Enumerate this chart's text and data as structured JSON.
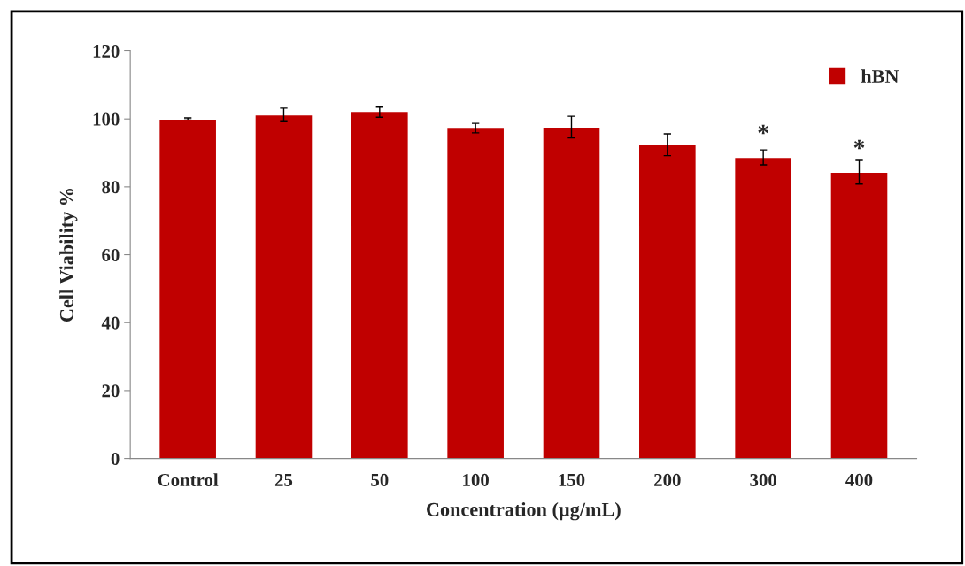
{
  "chart_data": {
    "type": "bar",
    "xlabel": "Concentration (µg/mL)",
    "ylabel": "Cell Viability %",
    "categories": [
      "Control",
      "25",
      "50",
      "100",
      "150",
      "200",
      "300",
      "400"
    ],
    "series": [
      {
        "name": "hBN",
        "color": "#c00000",
        "values": [
          100,
          101.2,
          102,
          97.3,
          97.6,
          92.4,
          88.7,
          84.3
        ],
        "errors": [
          0.3,
          2,
          1.5,
          1.4,
          3.2,
          3.2,
          2.2,
          3.5
        ]
      }
    ],
    "ylim": [
      0,
      120
    ],
    "yticks": [
      0,
      20,
      40,
      60,
      80,
      100,
      120
    ],
    "grid": false,
    "legend": "top right",
    "annotations": [
      {
        "text": "*",
        "x": "300",
        "y": 88.7
      },
      {
        "text": "*",
        "x": "400",
        "y": 84.3
      }
    ]
  }
}
